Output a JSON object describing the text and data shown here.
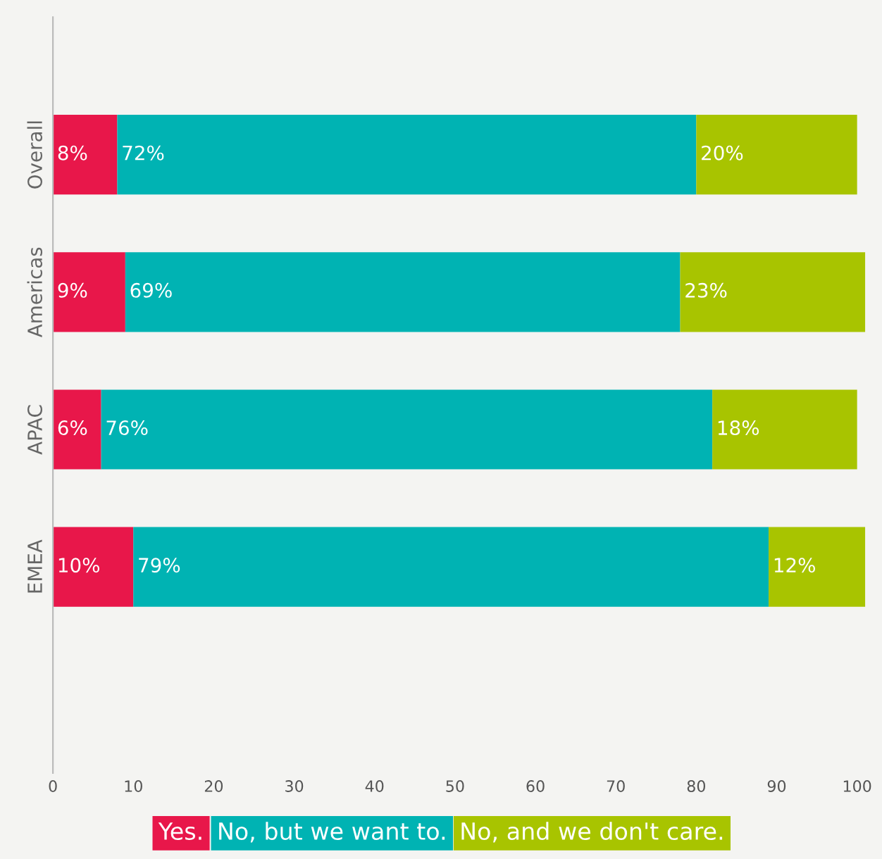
{
  "chart_data": {
    "type": "bar",
    "orientation": "horizontal",
    "stacked": true,
    "categories": [
      "Overall",
      "Americas",
      "APAC",
      "EMEA"
    ],
    "series": [
      {
        "name": "Yes.",
        "color": "#e8174a",
        "values": [
          8,
          9,
          6,
          10
        ],
        "value_labels": [
          "8%",
          "9%",
          "6%",
          "10%"
        ]
      },
      {
        "name": "No, but we want to.",
        "color": "#00b3b3",
        "values": [
          72,
          69,
          76,
          79
        ],
        "value_labels": [
          "72%",
          "69%",
          "76%",
          "79%"
        ]
      },
      {
        "name": "No, and we don't care.",
        "color": "#a8c400",
        "values": [
          20,
          23,
          18,
          12
        ],
        "value_labels": [
          "20%",
          "23%",
          "18%",
          "12%"
        ]
      }
    ],
    "xlim": [
      0,
      102
    ],
    "xticks": [
      0,
      10,
      20,
      30,
      40,
      50,
      60,
      70,
      80,
      90,
      100
    ],
    "grid": false,
    "legend": "bottom"
  }
}
